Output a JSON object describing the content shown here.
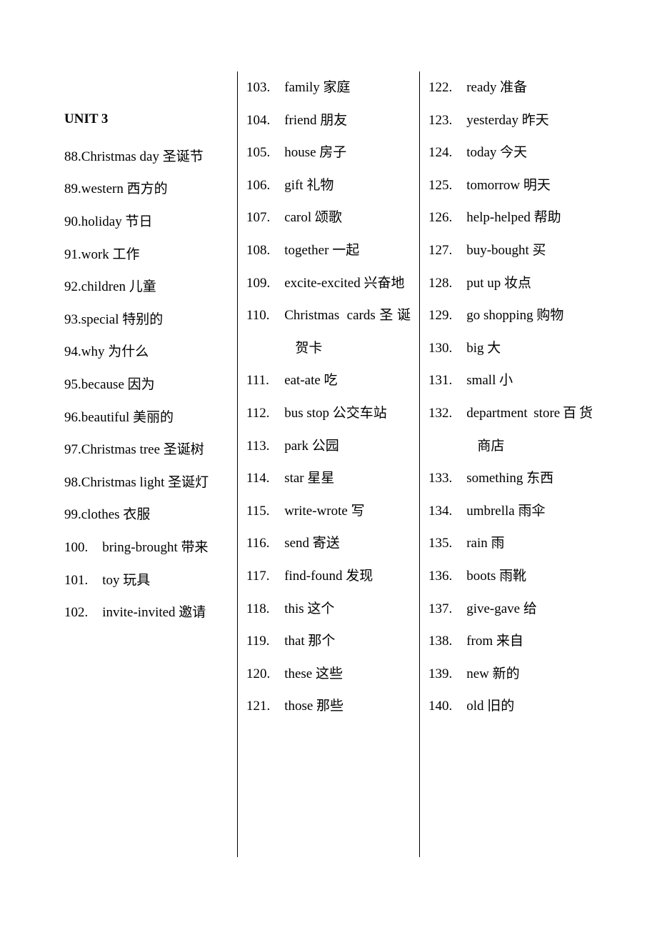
{
  "unit_title": "UNIT 3",
  "font_size_pt": 14,
  "line_height": 2.4,
  "text_color": "#000000",
  "background_color": "#ffffff",
  "separator_color": "#000000",
  "col1": [
    {
      "n": "88.",
      "t": "Christmas day 圣诞节"
    },
    {
      "n": "89.",
      "t": "western 西方的"
    },
    {
      "n": "90.",
      "t": "holiday 节日"
    },
    {
      "n": "91.",
      "t": "work 工作"
    },
    {
      "n": "92.",
      "t": "children 儿童"
    },
    {
      "n": "93.",
      "t": "special 特别的"
    },
    {
      "n": "94.",
      "t": "why 为什么"
    },
    {
      "n": "95.",
      "t": "because 因为"
    },
    {
      "n": "96.",
      "t": "beautiful 美丽的"
    },
    {
      "n": "97.",
      "t": "Christmas tree 圣诞树"
    },
    {
      "n": "98.",
      "t": "Christmas light 圣诞灯"
    },
    {
      "n": "99.",
      "t": "clothes 衣服"
    },
    {
      "n": "100.",
      "t": "bring-brought 带来",
      "w": true
    },
    {
      "n": "101.",
      "t": "toy 玩具",
      "w": true
    },
    {
      "n": "102.",
      "t": "invite-invited 邀请",
      "w": true
    }
  ],
  "col2": [
    {
      "n": "103.",
      "t": "family 家庭",
      "w": true
    },
    {
      "n": "104.",
      "t": "friend 朋友",
      "w": true
    },
    {
      "n": "105.",
      "t": "house 房子",
      "w": true
    },
    {
      "n": "106.",
      "t": "gift 礼物",
      "w": true
    },
    {
      "n": "107.",
      "t": "carol 颂歌",
      "w": true
    },
    {
      "n": "108.",
      "t": "together 一起",
      "w": true
    },
    {
      "n": "109.",
      "t": "excite-excited 兴奋地",
      "w": true
    },
    {
      "n": "110.",
      "t": "Christmas cards圣诞贺卡",
      "w": true
    },
    {
      "n": "111.",
      "t": "eat-ate 吃",
      "w": true
    },
    {
      "n": "112.",
      "t": "bus stop 公交车站",
      "w": true
    },
    {
      "n": "113.",
      "t": "park 公园",
      "w": true
    },
    {
      "n": "114.",
      "t": "star 星星",
      "w": true
    },
    {
      "n": "115.",
      "t": "write-wrote 写",
      "w": true
    },
    {
      "n": "116.",
      "t": "send 寄送",
      "w": true
    },
    {
      "n": "117.",
      "t": "find-found 发现",
      "w": true
    },
    {
      "n": "118.",
      "t": "this 这个",
      "w": true
    },
    {
      "n": "119.",
      "t": "that 那个",
      "w": true
    },
    {
      "n": "120.",
      "t": "these 这些",
      "w": true
    },
    {
      "n": "121.",
      "t": "those 那些",
      "w": true
    }
  ],
  "col3": [
    {
      "n": "122.",
      "t": "ready 准备",
      "w": true
    },
    {
      "n": "123.",
      "t": "yesterday 昨天",
      "w": true
    },
    {
      "n": "124.",
      "t": "today 今天",
      "w": true
    },
    {
      "n": "125.",
      "t": "tomorrow 明天",
      "w": true
    },
    {
      "n": "126.",
      "t": "help-helped 帮助",
      "w": true
    },
    {
      "n": "127.",
      "t": "buy-bought 买",
      "w": true
    },
    {
      "n": "128.",
      "t": "put up 妆点",
      "w": true
    },
    {
      "n": "129.",
      "t": "go shopping 购物",
      "w": true
    },
    {
      "n": "130.",
      "t": "big 大",
      "w": true
    },
    {
      "n": "131.",
      "t": "small 小",
      "w": true
    },
    {
      "n": "132.",
      "t": "department store百货商店",
      "w": true
    },
    {
      "n": "133.",
      "t": "something 东西",
      "w": true
    },
    {
      "n": "134.",
      "t": "umbrella 雨伞",
      "w": true
    },
    {
      "n": "135.",
      "t": "rain 雨",
      "w": true
    },
    {
      "n": "136.",
      "t": "boots 雨靴",
      "w": true
    },
    {
      "n": "137.",
      "t": "give-gave 给",
      "w": true
    },
    {
      "n": "138.",
      "t": "from 来自",
      "w": true
    },
    {
      "n": "139.",
      "t": "new 新的",
      "w": true
    },
    {
      "n": "140.",
      "t": "old 旧的",
      "w": true
    }
  ]
}
